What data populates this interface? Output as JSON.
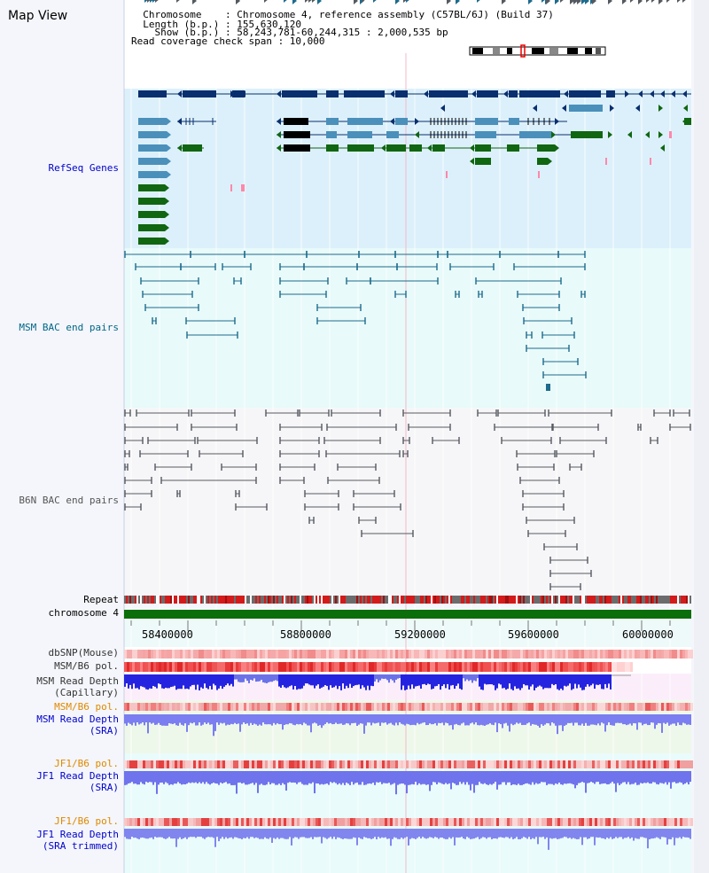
{
  "title": "Map View",
  "header": {
    "chromosome_line": "  Chromosome    : Chromosome 4, reference assembly (C57BL/6J) (Build 37)",
    "length_line": "  Length (b.p.) : 155,630,120",
    "show_line": "    Show (b.p.) : 58,243,781-60,244,315 : 2,000,535 bp",
    "span_line": "Read coverage check span : 10,000"
  },
  "tracks": {
    "refseq": "RefSeq Genes",
    "msm_bac": "MSM BAC end pairs",
    "b6n_bac": "B6N BAC end pairs",
    "repeat": "Repeat",
    "chromosome": "chromosome 4",
    "dbsnp": "dbSNP(Mouse)",
    "msm_b6_pol_1": "MSM/B6 pol.",
    "msm_read_depth_cap_1": "MSM Read Depth",
    "msm_read_depth_cap_2": "(Capillary)",
    "msm_b6_pol_2": "MSM/B6 pol.",
    "msm_read_depth_sra_1": "MSM Read Depth",
    "msm_read_depth_sra_2": "(SRA)",
    "jf1_b6_pol_1": "JF1/B6 pol.",
    "jf1_read_depth_sra_1": "JF1 Read Depth",
    "jf1_read_depth_sra_2": "(SRA)",
    "jf1_b6_pol_2": "JF1/B6 pol.",
    "jf1_read_depth_trim_1": "JF1 Read Depth",
    "jf1_read_depth_trim_2": "(SRA trimmed)"
  },
  "axis": {
    "ticks": [
      "58400000",
      "58800000",
      "59200000",
      "59600000",
      "60000000"
    ]
  },
  "colors": {
    "blue_label": "#0000cc",
    "teal_label": "#006688",
    "orange_label": "#e08800",
    "gene_dark": "#0a2f6e",
    "gene_light": "#4a90bb",
    "gene_green": "#116611",
    "chromosome_green": "#0b6e0b"
  }
}
